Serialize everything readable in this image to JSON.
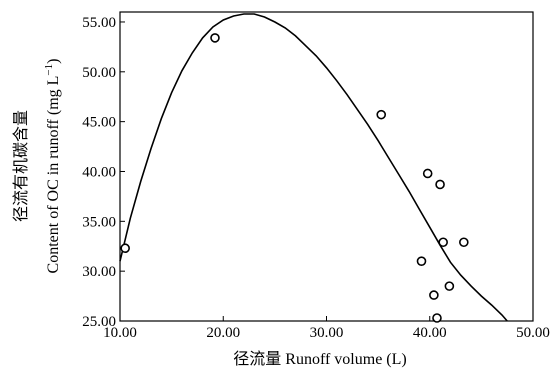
{
  "chart_data": {
    "type": "scatter",
    "xlabel": "径流量 Runoff volume (L)",
    "ylabel_line1": "径流有机碳含量",
    "ylabel_line2": "Content of OC in runoff (mg L",
    "ylabel_sup": "−1",
    "ylabel_end": ")",
    "xlim": [
      10,
      50
    ],
    "ylim": [
      25,
      56
    ],
    "xticks": [
      {
        "value": 10,
        "label": "10.00"
      },
      {
        "value": 20,
        "label": "20.00"
      },
      {
        "value": 30,
        "label": "30.00"
      },
      {
        "value": 40,
        "label": "40.00"
      },
      {
        "value": 50,
        "label": "50.00"
      }
    ],
    "yticks": [
      {
        "value": 25,
        "label": "25.00"
      },
      {
        "value": 30,
        "label": "30.00"
      },
      {
        "value": 35,
        "label": "35.00"
      },
      {
        "value": 40,
        "label": "40.00"
      },
      {
        "value": 45,
        "label": "45.00"
      },
      {
        "value": 50,
        "label": "50.00"
      },
      {
        "value": 55,
        "label": "55.00"
      }
    ],
    "points": [
      {
        "x": 10.5,
        "y": 32.3
      },
      {
        "x": 19.2,
        "y": 53.4
      },
      {
        "x": 35.3,
        "y": 45.7
      },
      {
        "x": 39.8,
        "y": 39.8
      },
      {
        "x": 41.0,
        "y": 38.7
      },
      {
        "x": 39.2,
        "y": 31.0
      },
      {
        "x": 41.3,
        "y": 32.9
      },
      {
        "x": 43.3,
        "y": 32.9
      },
      {
        "x": 40.4,
        "y": 27.6
      },
      {
        "x": 41.9,
        "y": 28.5
      },
      {
        "x": 40.7,
        "y": 25.3
      }
    ],
    "fit_curve": [
      {
        "x": 10.0,
        "y": 31.0
      },
      {
        "x": 11.0,
        "y": 35.3
      },
      {
        "x": 12.0,
        "y": 39.0
      },
      {
        "x": 13.0,
        "y": 42.3
      },
      {
        "x": 14.0,
        "y": 45.3
      },
      {
        "x": 15.0,
        "y": 47.9
      },
      {
        "x": 16.0,
        "y": 50.1
      },
      {
        "x": 17.0,
        "y": 51.9
      },
      {
        "x": 18.0,
        "y": 53.4
      },
      {
        "x": 19.0,
        "y": 54.5
      },
      {
        "x": 20.0,
        "y": 55.2
      },
      {
        "x": 21.0,
        "y": 55.6
      },
      {
        "x": 22.0,
        "y": 55.8
      },
      {
        "x": 23.0,
        "y": 55.8
      },
      {
        "x": 24.0,
        "y": 55.5
      },
      {
        "x": 25.0,
        "y": 55.0
      },
      {
        "x": 26.0,
        "y": 54.4
      },
      {
        "x": 27.0,
        "y": 53.6
      },
      {
        "x": 28.0,
        "y": 52.6
      },
      {
        "x": 29.0,
        "y": 51.6
      },
      {
        "x": 30.0,
        "y": 50.4
      },
      {
        "x": 31.0,
        "y": 49.1
      },
      {
        "x": 32.0,
        "y": 47.7
      },
      {
        "x": 33.0,
        "y": 46.2
      },
      {
        "x": 34.0,
        "y": 44.7
      },
      {
        "x": 35.0,
        "y": 43.1
      },
      {
        "x": 36.0,
        "y": 41.4
      },
      {
        "x": 37.0,
        "y": 39.7
      },
      {
        "x": 38.0,
        "y": 38.0
      },
      {
        "x": 39.0,
        "y": 36.2
      },
      {
        "x": 40.0,
        "y": 34.4
      },
      {
        "x": 41.0,
        "y": 32.6
      },
      {
        "x": 42.0,
        "y": 30.9
      },
      {
        "x": 43.0,
        "y": 29.6
      },
      {
        "x": 44.0,
        "y": 28.5
      },
      {
        "x": 45.0,
        "y": 27.5
      },
      {
        "x": 46.0,
        "y": 26.6
      },
      {
        "x": 47.0,
        "y": 25.6
      },
      {
        "x": 47.5,
        "y": 25.0
      }
    ]
  }
}
